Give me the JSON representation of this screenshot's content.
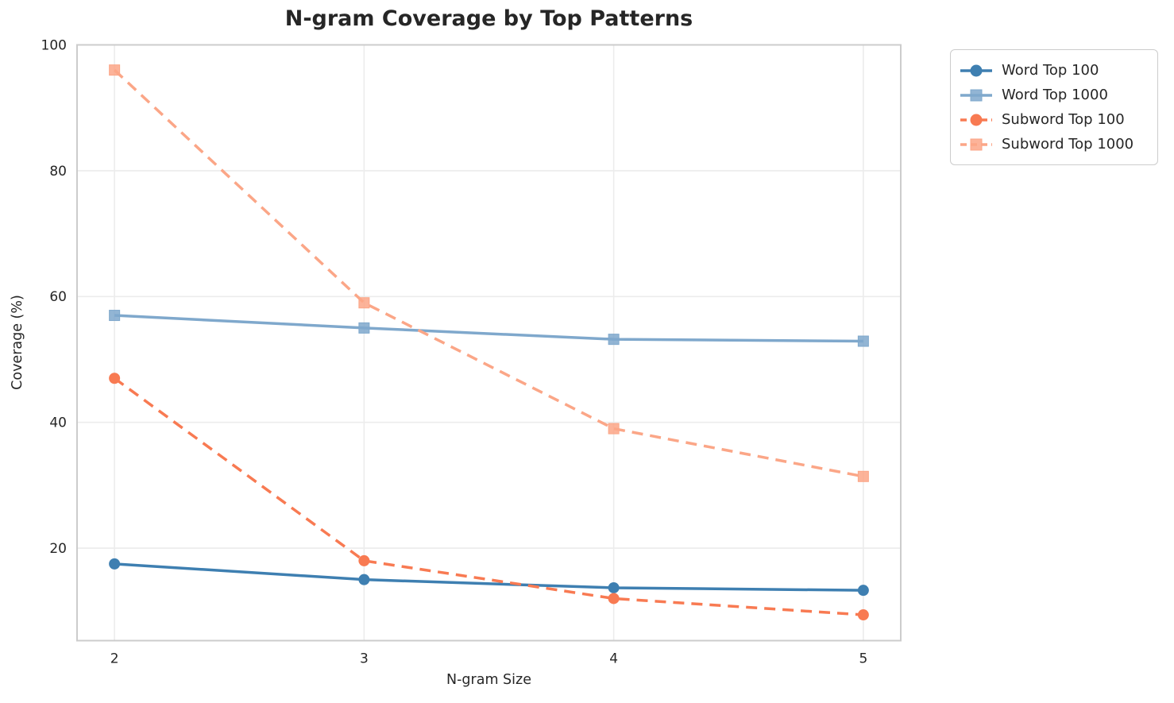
{
  "chart_data": {
    "type": "line",
    "title": "N-gram Coverage by Top Patterns",
    "xlabel": "N-gram Size",
    "ylabel": "Coverage (%)",
    "x": [
      2,
      3,
      4,
      5
    ],
    "xticks": [
      "2",
      "3",
      "4",
      "5"
    ],
    "yticks": [
      20,
      40,
      60,
      80,
      100
    ],
    "xlim": [
      1.85,
      5.15
    ],
    "ylim": [
      5.3,
      100
    ],
    "grid": true,
    "legend_position": "outside-right-top",
    "series": [
      {
        "name": "Word Top 100",
        "values": [
          17.5,
          15.0,
          13.7,
          13.3
        ],
        "color": "#3E7FB1",
        "style": "solid",
        "marker": "circle"
      },
      {
        "name": "Word Top 1000",
        "values": [
          57.0,
          55.0,
          53.2,
          52.9
        ],
        "color": "#7FA8CC",
        "style": "solid",
        "marker": "square"
      },
      {
        "name": "Subword Top 100",
        "values": [
          47.0,
          18.0,
          12.0,
          9.4
        ],
        "color": "#F87A52",
        "style": "dashed",
        "marker": "circle"
      },
      {
        "name": "Subword Top 1000",
        "values": [
          96.0,
          59.0,
          39.0,
          31.4
        ],
        "color": "#FBA687",
        "style": "dashed",
        "marker": "square"
      }
    ],
    "colors": {
      "grid": "#ececec",
      "spine": "#cccccc",
      "text": "#262626",
      "background": "#ffffff"
    }
  }
}
